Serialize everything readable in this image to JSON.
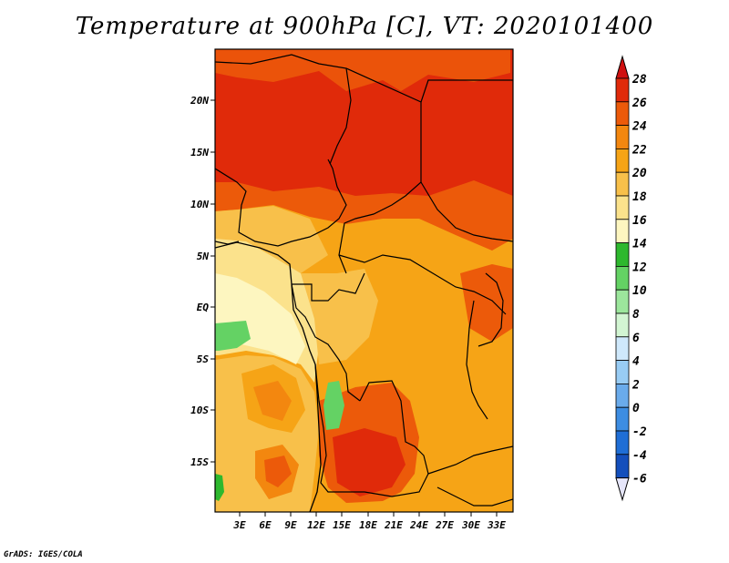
{
  "title": "Temperature at 900hPa [C], VT: 2020101400",
  "credit": "GrADS: IGES/COLA",
  "map": {
    "lat_labels": [
      "20N",
      "15N",
      "10N",
      "5N",
      "EQ",
      "5S",
      "10S",
      "15S"
    ],
    "lon_labels": [
      "3E",
      "6E",
      "9E",
      "12E",
      "15E",
      "18E",
      "21E",
      "24E",
      "27E",
      "30E",
      "33E"
    ]
  },
  "colorbar": {
    "levels": [
      "28",
      "26",
      "24",
      "22",
      "20",
      "18",
      "16",
      "14",
      "12",
      "10",
      "8",
      "6",
      "4",
      "2",
      "0",
      "-2",
      "-4",
      "-6"
    ],
    "colors": [
      "#d01010",
      "#e02a0a",
      "#ec5a0a",
      "#f3870f",
      "#f6a416",
      "#f8c04a",
      "#fbe28c",
      "#fdf6c0",
      "#2eb82e",
      "#64d264",
      "#9ce69c",
      "#d2f5d2",
      "#cfe8fb",
      "#98ccf4",
      "#6aabeb",
      "#3d8de2",
      "#1f6ed6",
      "#144fbc",
      "#0a2f96",
      "#000064",
      "#e6e6fa"
    ]
  }
}
